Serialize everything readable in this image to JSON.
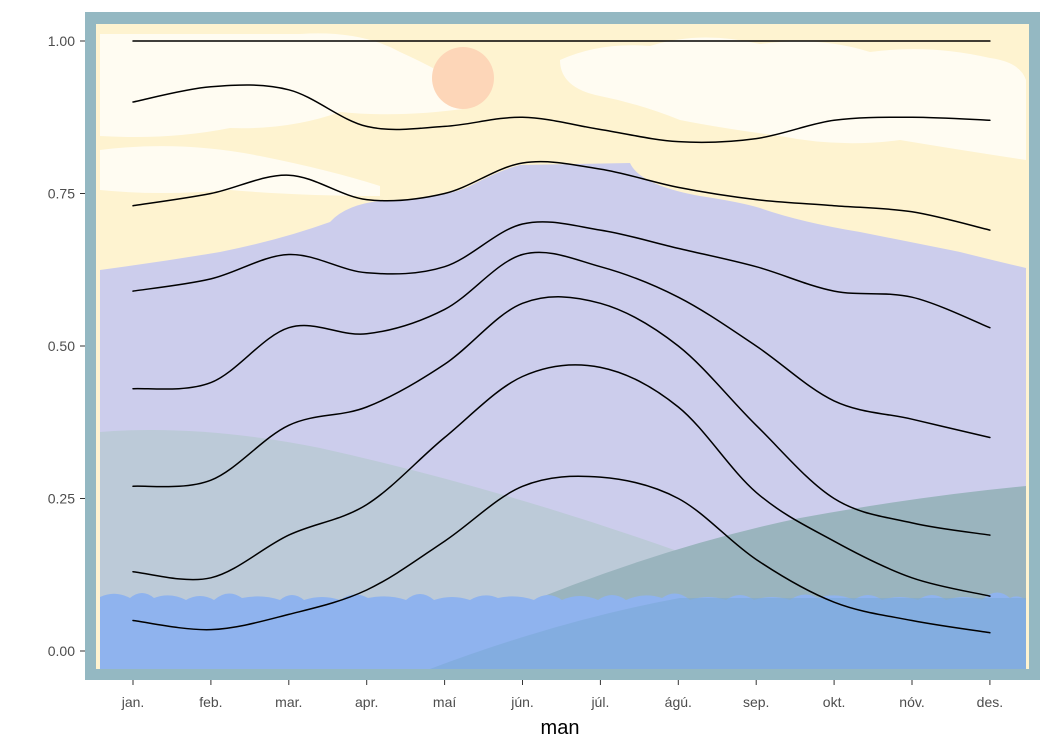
{
  "chart_data": {
    "type": "line",
    "title": "",
    "xlabel": "man",
    "ylabel": "",
    "categories": [
      "jan.",
      "feb.",
      "mar.",
      "apr.",
      "maí",
      "jún.",
      "júl.",
      "ágú.",
      "sep.",
      "okt.",
      "nóv.",
      "des."
    ],
    "y_ticks": [
      "0.00",
      "0.25",
      "0.50",
      "0.75",
      "1.00"
    ],
    "ylim": [
      -0.04,
      1.05
    ],
    "grid": false,
    "legend": "none",
    "background_art": "landscape: sky with sun and clouds, lavender mountain, grey-green hills, blue water",
    "series": [
      {
        "values": [
          0.05,
          0.035,
          0.06,
          0.1,
          0.18,
          0.27,
          0.285,
          0.25,
          0.15,
          0.08,
          0.05,
          0.03
        ]
      },
      {
        "values": [
          0.13,
          0.12,
          0.19,
          0.24,
          0.35,
          0.45,
          0.465,
          0.4,
          0.26,
          0.18,
          0.12,
          0.09
        ]
      },
      {
        "values": [
          0.27,
          0.28,
          0.37,
          0.4,
          0.47,
          0.57,
          0.57,
          0.5,
          0.37,
          0.25,
          0.21,
          0.19
        ]
      },
      {
        "values": [
          0.43,
          0.44,
          0.53,
          0.52,
          0.56,
          0.65,
          0.63,
          0.58,
          0.5,
          0.41,
          0.38,
          0.35
        ]
      },
      {
        "values": [
          0.59,
          0.61,
          0.65,
          0.62,
          0.63,
          0.7,
          0.69,
          0.66,
          0.63,
          0.59,
          0.58,
          0.53
        ]
      },
      {
        "values": [
          0.73,
          0.75,
          0.78,
          0.74,
          0.75,
          0.8,
          0.79,
          0.76,
          0.74,
          0.73,
          0.72,
          0.69
        ]
      },
      {
        "values": [
          0.9,
          0.925,
          0.92,
          0.86,
          0.86,
          0.875,
          0.855,
          0.835,
          0.84,
          0.87,
          0.875,
          0.87
        ]
      },
      {
        "values": [
          1.0,
          1.0,
          1.0,
          1.0,
          1.0,
          1.0,
          1.0,
          1.0,
          1.0,
          1.0,
          1.0,
          1.0
        ]
      }
    ],
    "colors": {
      "frame": "#94b8c2",
      "sky": "#fef3d0",
      "cloud": "#fffcf2",
      "sun": "#fdd6b8",
      "mountain": "#cccdec",
      "hill_left": "#bccad8",
      "hill_right": "#9ab4be",
      "water": "#8fb3ee",
      "water_overlap": "#7aa8d6",
      "line": "#000000"
    }
  }
}
